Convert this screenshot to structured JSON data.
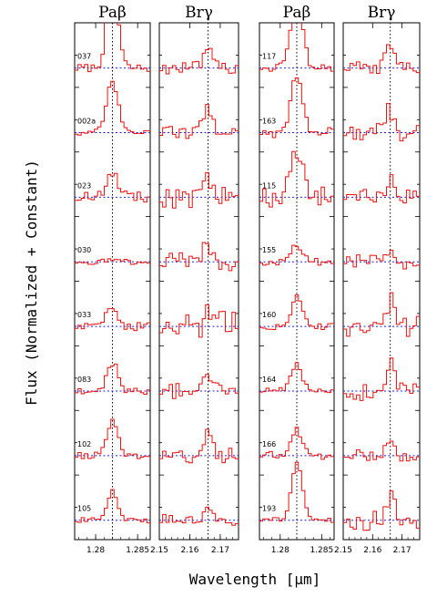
{
  "chart_data": {
    "type": "line",
    "xlabel": "Wavelength [μm]",
    "ylabel": "Flux (Normalized + Constant)",
    "line_color": "#ee1111",
    "continuum_color": "#2222dd",
    "marker_color": "#000000",
    "panels": [
      {
        "title": "Paβ",
        "line": "pab",
        "xlim": [
          1.2775,
          1.2865
        ],
        "center": 1.282,
        "xticks": [
          1.28,
          1.285
        ],
        "xticklabels": [
          "1.28",
          "1.285"
        ],
        "labels": [
          "037",
          "002a",
          "023",
          "030",
          "033",
          "083",
          "102",
          "105"
        ],
        "amps": [
          1.7,
          1.0,
          0.45,
          0.05,
          0.4,
          0.55,
          0.65,
          0.55
        ],
        "noise": [
          0.08,
          0.06,
          0.12,
          0.05,
          0.08,
          0.07,
          0.06,
          0.06
        ]
      },
      {
        "title": "Brγ",
        "line": "brg",
        "xlim": [
          2.15,
          2.176
        ],
        "center": 2.166,
        "xticks": [
          2.15,
          2.16,
          2.17
        ],
        "xticklabels": [
          "2.15",
          "2.16",
          "2.17"
        ],
        "labels": [
          "",
          "",
          "",
          "",
          "",
          "",
          "",
          ""
        ],
        "amps": [
          0.3,
          0.5,
          0.4,
          0.3,
          0.35,
          0.3,
          0.5,
          0.25
        ],
        "noise": [
          0.12,
          0.12,
          0.22,
          0.18,
          0.3,
          0.15,
          0.15,
          0.12
        ]
      },
      {
        "title": "Paβ",
        "line": "pab",
        "xlim": [
          1.2775,
          1.2865
        ],
        "center": 1.282,
        "xticks": [
          1.28,
          1.285
        ],
        "xticklabels": [
          "1.28",
          "1.285"
        ],
        "labels": [
          "117",
          "163",
          "115",
          "155",
          "160",
          "164",
          "166",
          "193"
        ],
        "amps": [
          1.6,
          1.1,
          0.9,
          0.35,
          0.55,
          0.5,
          0.5,
          1.1
        ],
        "noise": [
          0.08,
          0.1,
          0.22,
          0.07,
          0.06,
          0.06,
          0.08,
          0.05
        ]
      },
      {
        "title": "Brγ",
        "line": "brg",
        "xlim": [
          2.15,
          2.176
        ],
        "center": 2.166,
        "xticks": [
          2.15,
          2.16,
          2.17
        ],
        "xticklabels": [
          "2.15",
          "2.16",
          "2.17"
        ],
        "labels": [
          "",
          "",
          "",
          "",
          "",
          "",
          "",
          ""
        ],
        "amps": [
          0.5,
          0.45,
          0.3,
          0.1,
          0.5,
          0.5,
          0.2,
          0.45
        ],
        "noise": [
          0.12,
          0.2,
          0.15,
          0.14,
          0.2,
          0.2,
          0.12,
          0.2
        ]
      }
    ]
  }
}
